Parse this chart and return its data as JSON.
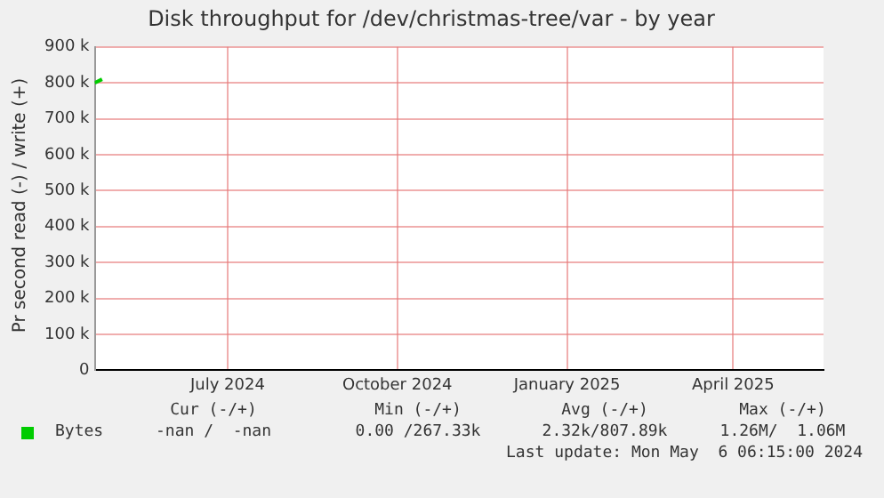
{
  "chart_data": {
    "type": "line",
    "title": "Disk throughput for /dev/christmas-tree/var - by year",
    "ylabel": "Pr second read (-) / write (+)",
    "x": [
      "2024-04-20",
      "2024-04-24"
    ],
    "series": [
      {
        "name": "Bytes",
        "color": "#00cc00",
        "values": [
          800000,
          810000
        ]
      }
    ],
    "xlim": [
      "2024-04-20",
      "2025-05-20"
    ],
    "xticks": [
      {
        "value": "2024-07-01",
        "label": "July 2024"
      },
      {
        "value": "2024-10-01",
        "label": "October 2024"
      },
      {
        "value": "2025-01-01",
        "label": "January 2025"
      },
      {
        "value": "2025-04-01",
        "label": "April 2025"
      }
    ],
    "ylim": [
      0,
      900000
    ],
    "yticks": [
      {
        "value": 0,
        "label": "0"
      },
      {
        "value": 100000,
        "label": "100 k"
      },
      {
        "value": 200000,
        "label": "200 k"
      },
      {
        "value": 300000,
        "label": "300 k"
      },
      {
        "value": 400000,
        "label": "400 k"
      },
      {
        "value": 500000,
        "label": "500 k"
      },
      {
        "value": 600000,
        "label": "600 k"
      },
      {
        "value": 700000,
        "label": "700 k"
      },
      {
        "value": 800000,
        "label": "800 k"
      },
      {
        "value": 900000,
        "label": "900 k"
      }
    ],
    "grid": true,
    "legend": "bottom left",
    "marker": "none",
    "annotations": [
      "Cur (-/+)",
      "Min (-/+)",
      "Avg (-/+)",
      "Max (-/+)",
      "-nan /  -nan",
      "0.00 /267.33k",
      "2.32k/807.89k",
      "1.26M/  1.06M",
      "Last update: Mon May  6 06:15:00 2024"
    ]
  }
}
